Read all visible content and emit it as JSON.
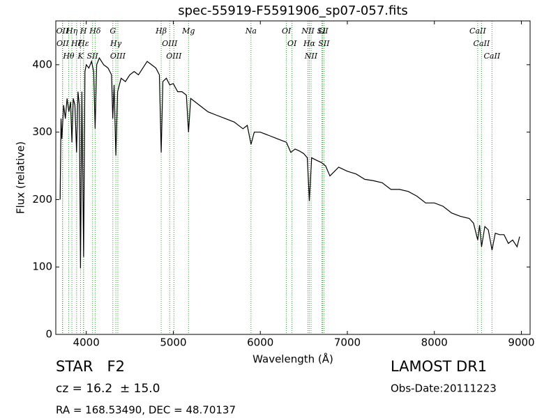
{
  "chart_data": {
    "type": "line",
    "title": "spec-55919-F5591906_sp07-057.fits",
    "x_label": "Wavelength (Å)",
    "y_label": "Flux (relative)",
    "object_class": "STAR   F2",
    "redshift": "cz = 16.2  ± 15.0",
    "coordinates": "RA = 168.53490, DEC = 48.70137",
    "survey": "LAMOST DR1",
    "obs_date": "Obs-Date:20111223",
    "color": "#000000",
    "line_color": "#2ca02c",
    "xlim": [
      3650,
      9100
    ],
    "ylim": [
      0,
      465
    ],
    "xticks": [
      4000,
      5000,
      6000,
      7000,
      8000,
      9000
    ],
    "yticks": [
      0,
      100,
      200,
      300,
      400
    ],
    "x": [
      3700,
      3710,
      3720,
      3740,
      3760,
      3780,
      3800,
      3820,
      3835,
      3850,
      3870,
      3889,
      3905,
      3920,
      3934,
      3950,
      3970,
      3985,
      4000,
      4030,
      4060,
      4085,
      4102,
      4120,
      4150,
      4200,
      4250,
      4290,
      4305,
      4320,
      4340,
      4360,
      4400,
      4450,
      4500,
      4550,
      4600,
      4650,
      4700,
      4750,
      4800,
      4840,
      4861,
      4880,
      4920,
      4960,
      5000,
      5050,
      5100,
      5150,
      5175,
      5200,
      5250,
      5300,
      5400,
      5500,
      5600,
      5700,
      5800,
      5850,
      5893,
      5930,
      6000,
      6100,
      6200,
      6300,
      6350,
      6400,
      6450,
      6500,
      6540,
      6563,
      6590,
      6650,
      6700,
      6750,
      6800,
      6900,
      7000,
      7100,
      7200,
      7300,
      7400,
      7500,
      7600,
      7700,
      7800,
      7900,
      8000,
      8100,
      8200,
      8300,
      8400,
      8450,
      8498,
      8520,
      8542,
      8580,
      8620,
      8662,
      8700,
      8750,
      8800,
      8850,
      8900,
      8950,
      8980
    ],
    "values": [
      200,
      320,
      290,
      340,
      320,
      350,
      330,
      345,
      285,
      350,
      340,
      270,
      360,
      340,
      98,
      360,
      115,
      390,
      400,
      395,
      405,
      390,
      305,
      400,
      410,
      400,
      395,
      385,
      320,
      370,
      265,
      360,
      380,
      375,
      385,
      390,
      385,
      395,
      405,
      400,
      395,
      385,
      270,
      375,
      380,
      370,
      372,
      360,
      360,
      355,
      300,
      350,
      345,
      340,
      330,
      325,
      320,
      315,
      305,
      310,
      282,
      300,
      300,
      295,
      290,
      285,
      270,
      275,
      272,
      268,
      262,
      198,
      262,
      258,
      255,
      250,
      235,
      248,
      242,
      238,
      230,
      228,
      225,
      215,
      215,
      212,
      205,
      195,
      195,
      190,
      180,
      175,
      172,
      165,
      140,
      162,
      130,
      160,
      155,
      125,
      150,
      148,
      148,
      135,
      140,
      130,
      145
    ],
    "lines": [
      {
        "name": "OII",
        "wavelength": 3726
      },
      {
        "name": "OII",
        "wavelength": 3729
      },
      {
        "name": "Hθ",
        "wavelength": 3798
      },
      {
        "name": "Hη",
        "wavelength": 3835
      },
      {
        "name": "Hζ",
        "wavelength": 3889
      },
      {
        "name": "K",
        "wavelength": 3934
      },
      {
        "name": "H",
        "wavelength": 3968
      },
      {
        "name": "Hε",
        "wavelength": 3970
      },
      {
        "name": "SII",
        "wavelength": 4072
      },
      {
        "name": "Hδ",
        "wavelength": 4102
      },
      {
        "name": "G",
        "wavelength": 4305
      },
      {
        "name": "Hγ",
        "wavelength": 4340
      },
      {
        "name": "OIII",
        "wavelength": 4363
      },
      {
        "name": "Hβ",
        "wavelength": 4861
      },
      {
        "name": "OIII",
        "wavelength": 4959
      },
      {
        "name": "OIII",
        "wavelength": 5007
      },
      {
        "name": "Mg",
        "wavelength": 5175
      },
      {
        "name": "Na",
        "wavelength": 5893
      },
      {
        "name": "OI",
        "wavelength": 6300
      },
      {
        "name": "OI",
        "wavelength": 6364
      },
      {
        "name": "NII",
        "wavelength": 6548
      },
      {
        "name": "Hα",
        "wavelength": 6563
      },
      {
        "name": "NII",
        "wavelength": 6583
      },
      {
        "name": "Li",
        "wavelength": 6708
      },
      {
        "name": "SII",
        "wavelength": 6716
      },
      {
        "name": "SII",
        "wavelength": 6731
      },
      {
        "name": "CaII",
        "wavelength": 8498
      },
      {
        "name": "CaII",
        "wavelength": 8542
      },
      {
        "name": "CaII",
        "wavelength": 8662
      }
    ]
  }
}
